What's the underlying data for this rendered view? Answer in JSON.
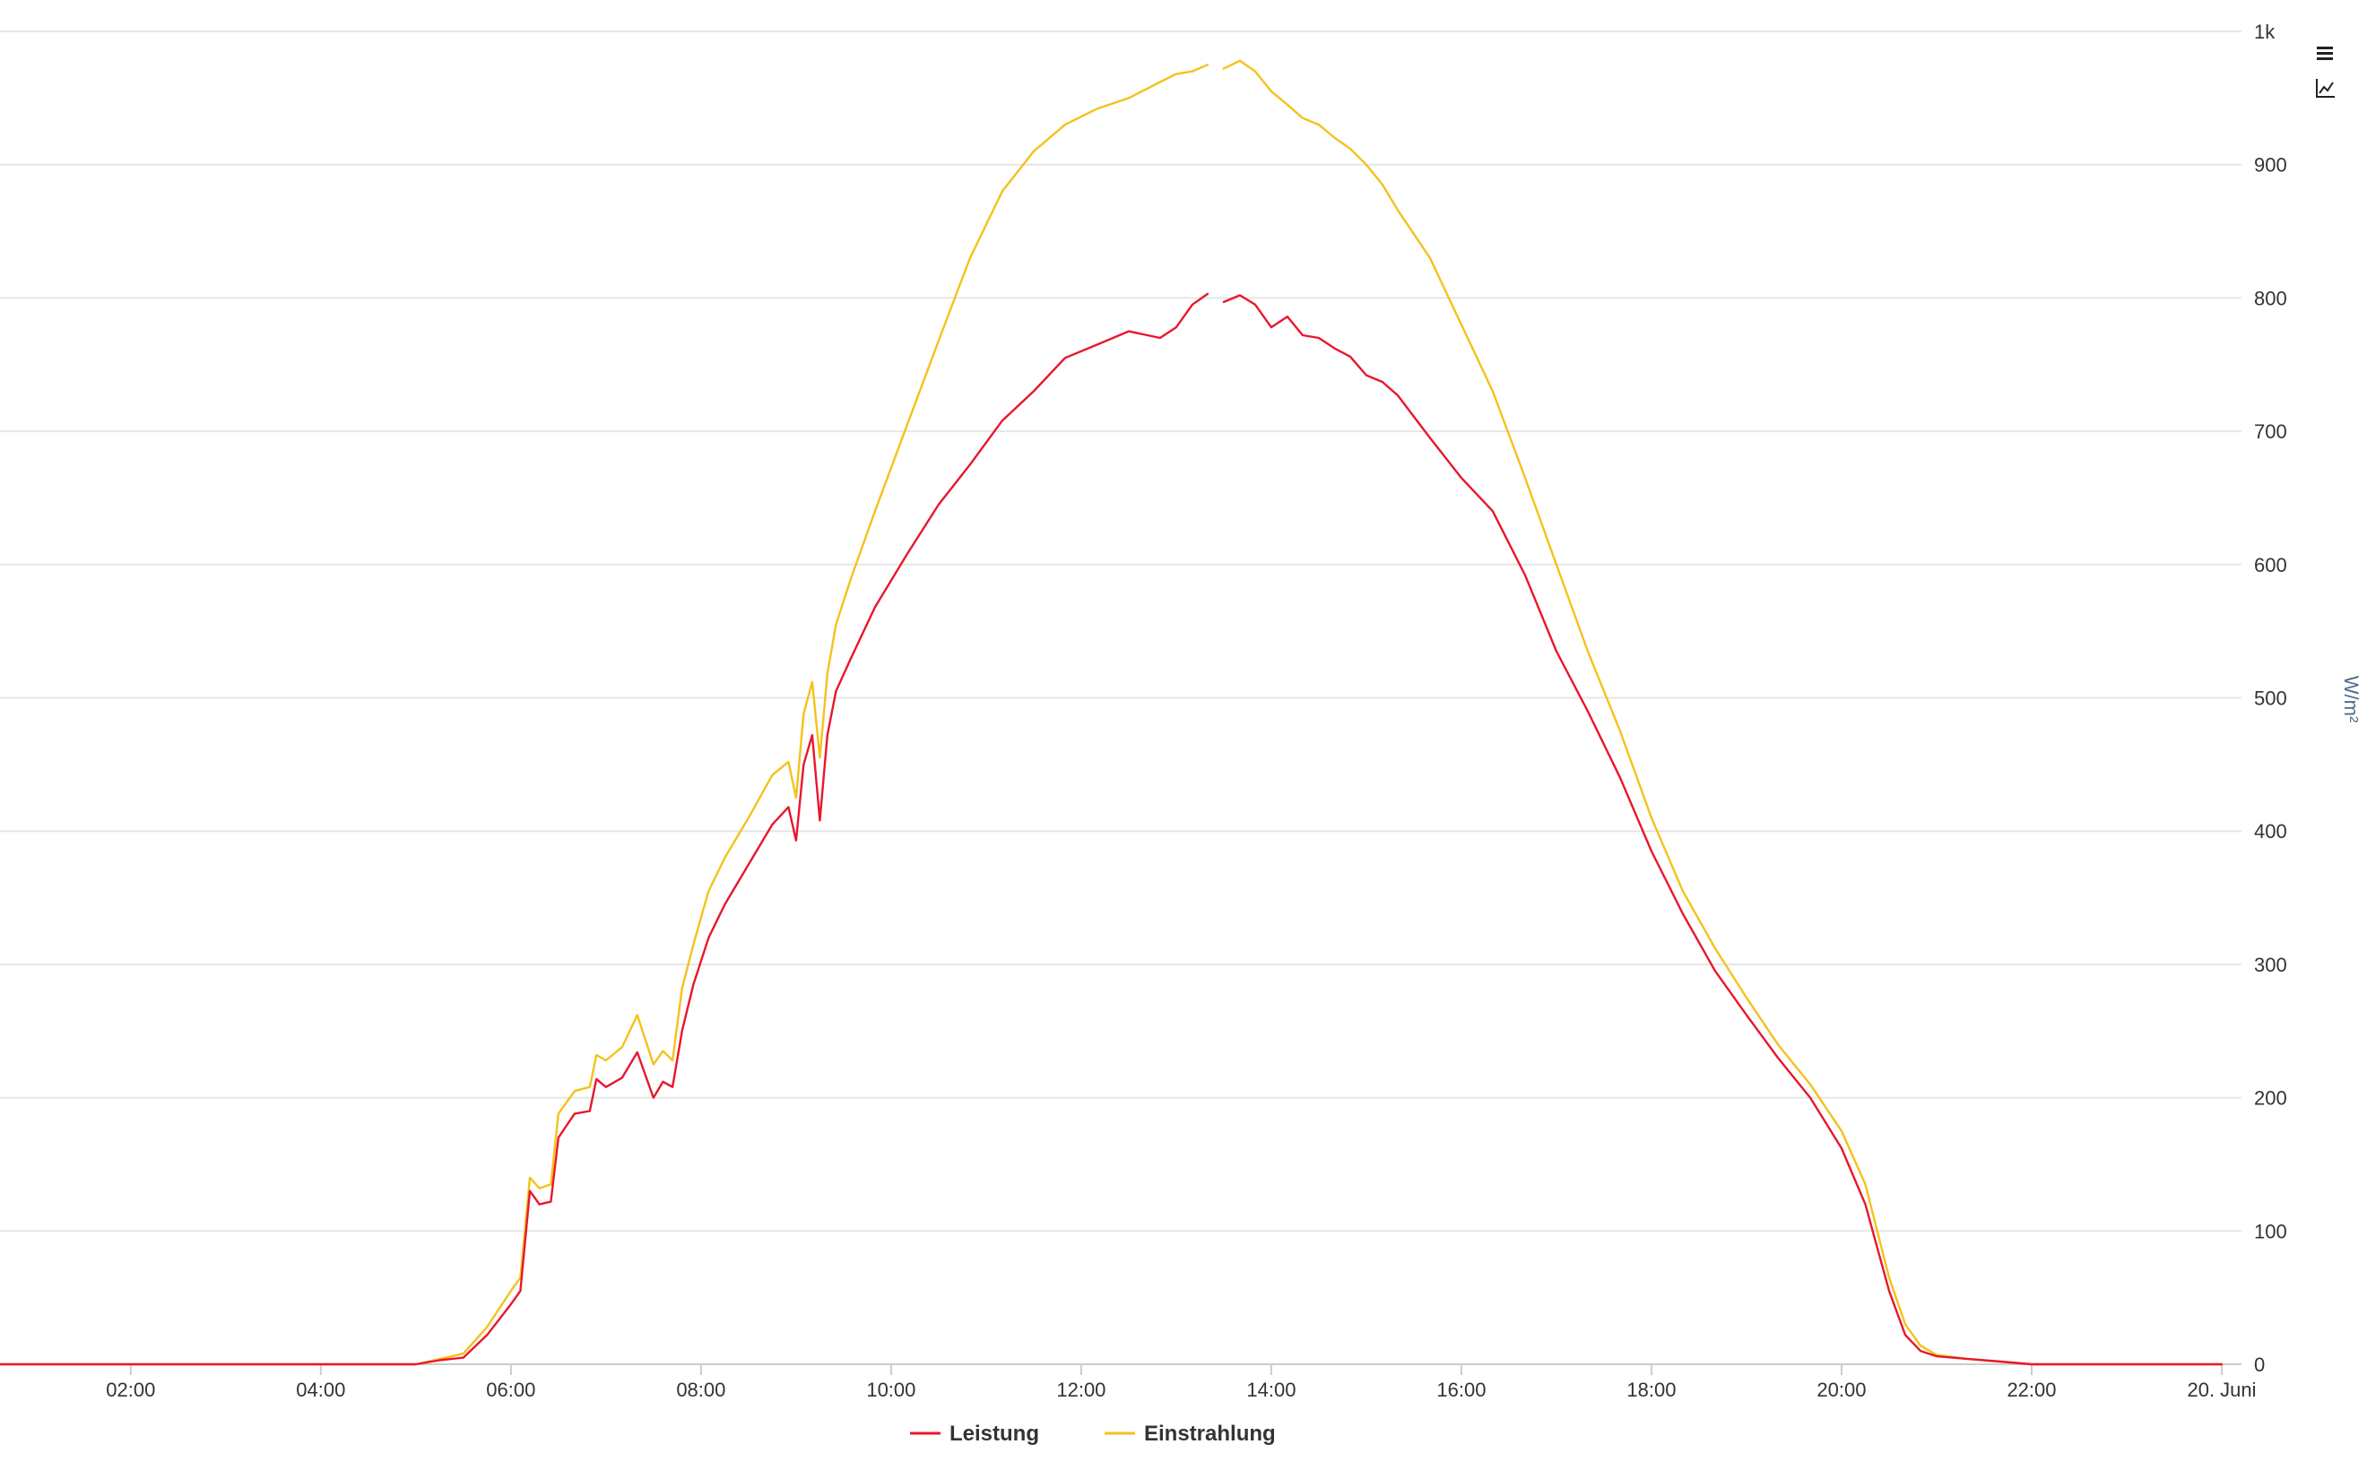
{
  "chart_data": {
    "type": "line",
    "title": "",
    "xlabel": "",
    "ylabel": "W/m²",
    "ylim": [
      0,
      1000
    ],
    "xlim": [
      0.6,
      24
    ],
    "grid": true,
    "legend_position": "bottom-center",
    "x_ticks": [
      {
        "value": 2,
        "label": "02:00"
      },
      {
        "value": 4,
        "label": "04:00"
      },
      {
        "value": 6,
        "label": "06:00"
      },
      {
        "value": 8,
        "label": "08:00"
      },
      {
        "value": 10,
        "label": "10:00"
      },
      {
        "value": 12,
        "label": "12:00"
      },
      {
        "value": 14,
        "label": "14:00"
      },
      {
        "value": 16,
        "label": "16:00"
      },
      {
        "value": 18,
        "label": "18:00"
      },
      {
        "value": 20,
        "label": "20:00"
      },
      {
        "value": 22,
        "label": "22:00"
      },
      {
        "value": 24,
        "label": "20. Juni"
      }
    ],
    "y_ticks": [
      {
        "value": 0,
        "label": "0"
      },
      {
        "value": 100,
        "label": "100"
      },
      {
        "value": 200,
        "label": "200"
      },
      {
        "value": 300,
        "label": "300"
      },
      {
        "value": 400,
        "label": "400"
      },
      {
        "value": 500,
        "label": "500"
      },
      {
        "value": 600,
        "label": "600"
      },
      {
        "value": 700,
        "label": "700"
      },
      {
        "value": 800,
        "label": "800"
      },
      {
        "value": 900,
        "label": "900"
      },
      {
        "value": 1000,
        "label": "1k"
      }
    ],
    "series": [
      {
        "name": "Leistung",
        "color": "#e8172d",
        "x": [
          0.6,
          5.0,
          5.25,
          5.5,
          5.75,
          6.0,
          6.1,
          6.2,
          6.3,
          6.42,
          6.5,
          6.67,
          6.83,
          6.9,
          7.0,
          7.17,
          7.33,
          7.5,
          7.6,
          7.7,
          7.8,
          7.92,
          8.08,
          8.25,
          8.5,
          8.75,
          8.92,
          9.0,
          9.08,
          9.17,
          9.25,
          9.33,
          9.42,
          9.58,
          9.83,
          10.17,
          10.5,
          10.83,
          11.17,
          11.5,
          11.83,
          12.17,
          12.5,
          12.83,
          13.0,
          13.17,
          13.33,
          null,
          13.5,
          13.67,
          13.83,
          14.0,
          14.17,
          14.33,
          14.5,
          14.67,
          14.83,
          15.0,
          15.17,
          15.33,
          15.67,
          16.0,
          16.33,
          16.67,
          17.0,
          17.33,
          17.67,
          18.0,
          18.33,
          18.67,
          19.0,
          19.33,
          19.67,
          20.0,
          20.25,
          20.5,
          20.67,
          20.83,
          21.0,
          21.33,
          21.67,
          22.0,
          24.0
        ],
        "y": [
          0,
          0,
          3,
          5,
          22,
          45,
          55,
          130,
          120,
          122,
          170,
          188,
          190,
          214,
          208,
          215,
          234,
          200,
          212,
          208,
          250,
          285,
          320,
          345,
          375,
          405,
          418,
          393,
          450,
          472,
          408,
          472,
          505,
          530,
          568,
          608,
          645,
          675,
          708,
          730,
          755,
          765,
          775,
          770,
          778,
          795,
          803,
          null,
          797,
          802,
          795,
          778,
          786,
          772,
          770,
          762,
          756,
          742,
          737,
          727,
          695,
          665,
          640,
          592,
          535,
          490,
          440,
          385,
          338,
          295,
          262,
          230,
          200,
          162,
          120,
          55,
          22,
          10,
          6,
          4,
          2,
          0,
          0
        ]
      },
      {
        "name": "Einstrahlung",
        "color": "#f4c21b",
        "x": [
          0.6,
          5.0,
          5.25,
          5.5,
          5.75,
          6.0,
          6.1,
          6.2,
          6.3,
          6.42,
          6.5,
          6.67,
          6.83,
          6.9,
          7.0,
          7.17,
          7.33,
          7.5,
          7.6,
          7.7,
          7.8,
          7.92,
          8.08,
          8.25,
          8.5,
          8.75,
          8.92,
          9.0,
          9.08,
          9.17,
          9.25,
          9.33,
          9.42,
          9.58,
          9.83,
          10.17,
          10.5,
          10.83,
          11.17,
          11.5,
          11.83,
          12.17,
          12.5,
          12.83,
          13.0,
          13.17,
          13.33,
          null,
          13.5,
          13.67,
          13.83,
          14.0,
          14.17,
          14.33,
          14.5,
          14.67,
          14.83,
          15.0,
          15.17,
          15.33,
          15.67,
          16.0,
          16.33,
          16.67,
          17.0,
          17.33,
          17.67,
          18.0,
          18.33,
          18.67,
          19.0,
          19.33,
          19.67,
          20.0,
          20.25,
          20.5,
          20.67,
          20.83,
          21.0,
          21.33,
          21.67,
          22.0,
          24.0
        ],
        "y": [
          0,
          0,
          4,
          8,
          28,
          55,
          65,
          140,
          132,
          135,
          188,
          205,
          208,
          232,
          228,
          238,
          262,
          225,
          235,
          228,
          282,
          315,
          355,
          380,
          410,
          442,
          452,
          425,
          488,
          512,
          455,
          518,
          555,
          590,
          640,
          705,
          768,
          830,
          880,
          910,
          930,
          942,
          950,
          962,
          968,
          970,
          975,
          null,
          972,
          978,
          970,
          955,
          945,
          935,
          930,
          920,
          912,
          900,
          885,
          866,
          830,
          780,
          730,
          665,
          600,
          535,
          475,
          410,
          355,
          312,
          275,
          240,
          210,
          175,
          135,
          65,
          30,
          14,
          7,
          4,
          2,
          0,
          0
        ]
      }
    ]
  },
  "toolbar": {
    "menu_icon": "hamburger-menu-icon",
    "chart_type_icon": "line-chart-icon"
  }
}
